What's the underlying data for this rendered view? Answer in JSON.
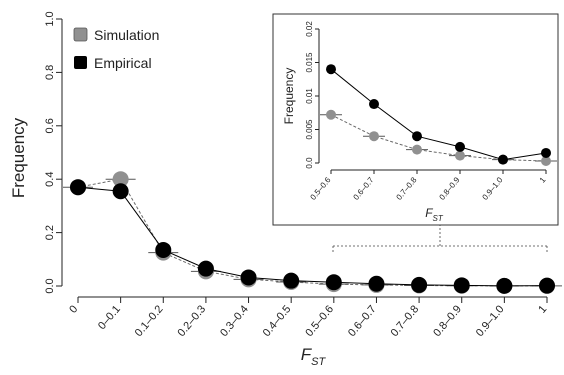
{
  "chart_data": [
    {
      "type": "line",
      "xlabel": "F",
      "xlabel_sub": "ST",
      "ylabel": "Frequency",
      "categories": [
        "0",
        "0–0.1",
        "0.1–0.2",
        "0.2–0.3",
        "0.3–0.4",
        "0.4–0.5",
        "0.5–0.6",
        "0.6–0.7",
        "0.7–0.8",
        "0.8–0.9",
        "0.9–1.0",
        "1"
      ],
      "ylim": [
        0,
        1.0
      ],
      "yticks": [
        "0.0",
        "0.2",
        "0.4",
        "0.6",
        "0.8",
        "1.0"
      ],
      "ytick_values": [
        0,
        0.2,
        0.4,
        0.6,
        0.8,
        1.0
      ],
      "legend": {
        "placement": "top-left"
      },
      "series": [
        {
          "name": "Simulation",
          "color": "#909090",
          "line": "dashed",
          "values": [
            0.37,
            0.4,
            0.125,
            0.055,
            0.025,
            0.015,
            0.007,
            0.004,
            0.002,
            0.001,
            0.0005,
            0.0003
          ]
        },
        {
          "name": "Empirical",
          "color": "#000000",
          "line": "solid",
          "values": [
            0.37,
            0.355,
            0.135,
            0.065,
            0.032,
            0.02,
            0.014,
            0.0085,
            0.004,
            0.0025,
            0.0005,
            0.0015
          ]
        }
      ]
    },
    {
      "type": "line",
      "inset": true,
      "xlabel": "F",
      "xlabel_sub": "ST",
      "ylabel": "Frequency",
      "categories": [
        "0.5–0.6",
        "0.6–0.7",
        "0.7–0.8",
        "0.8–0.9",
        "0.9–1.0",
        "1"
      ],
      "ylim": [
        0,
        0.02
      ],
      "yticks": [
        "0.0",
        "0.005",
        "0.01",
        "0.015",
        "0.02"
      ],
      "ytick_values": [
        0,
        0.005,
        0.01,
        0.015,
        0.02
      ],
      "series": [
        {
          "name": "Simulation",
          "color": "#909090",
          "line": "dashed",
          "values": [
            0.0072,
            0.004,
            0.002,
            0.0011,
            0.0005,
            0.0003
          ]
        },
        {
          "name": "Empirical",
          "color": "#000000",
          "line": "solid",
          "values": [
            0.014,
            0.0088,
            0.004,
            0.0024,
            0.0005,
            0.0015
          ]
        }
      ]
    }
  ]
}
